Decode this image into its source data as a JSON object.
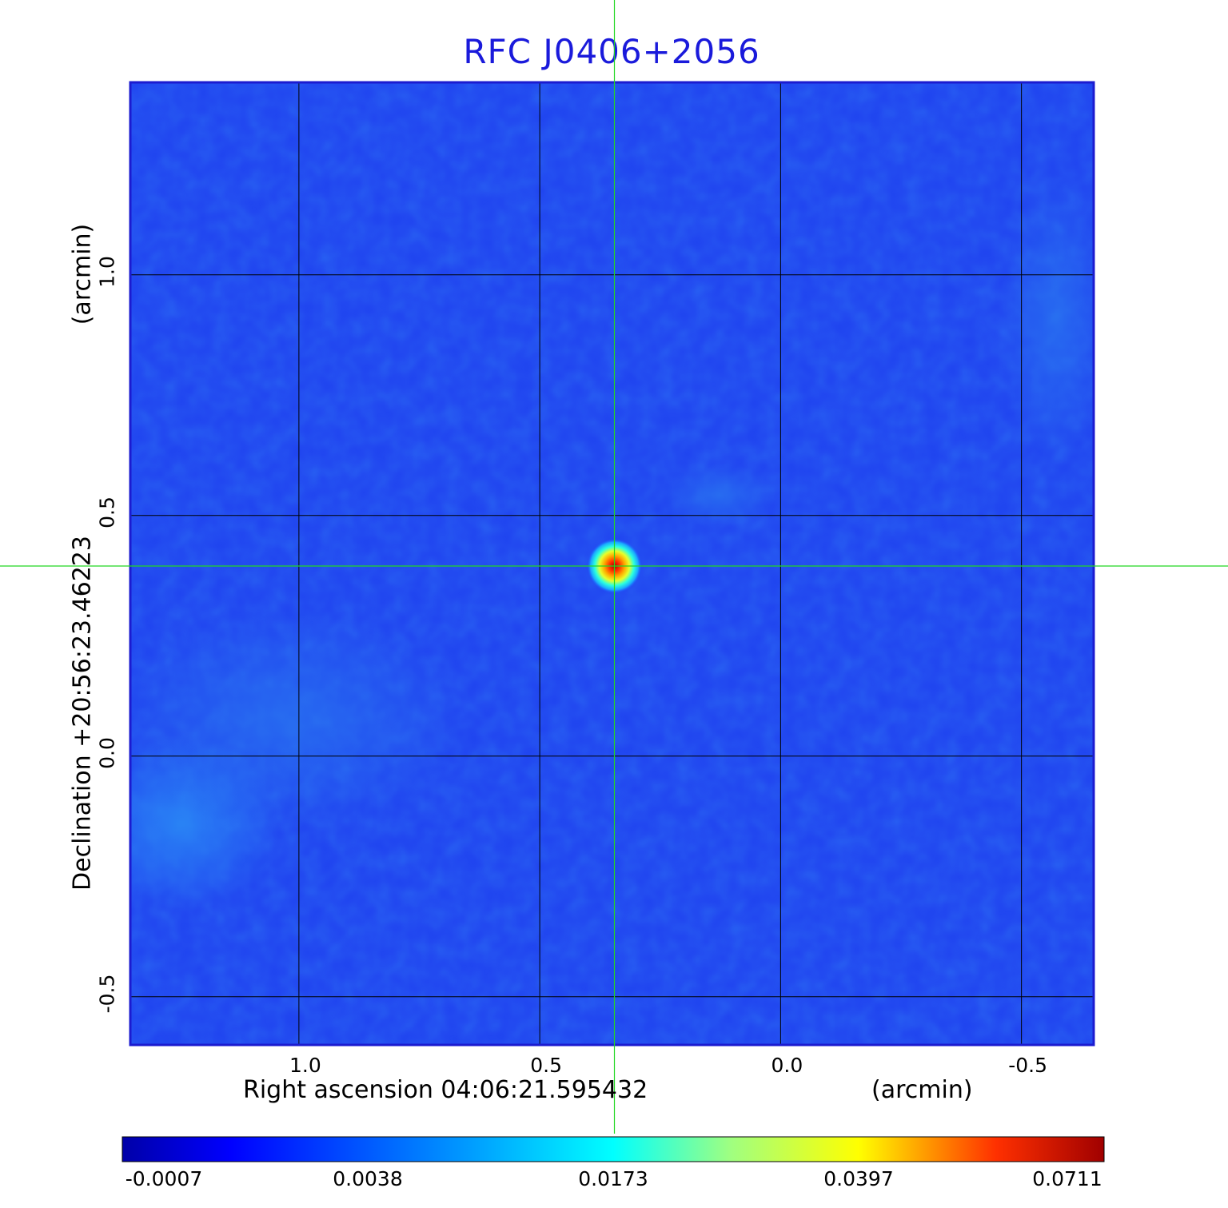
{
  "chart_data": {
    "type": "heatmap",
    "title": "RFC J0406+2056",
    "xlabel": "Right ascension  04:06:21.595432",
    "xunit": "(arcmin)",
    "ylabel": "Declination  +20:56:23.46223",
    "yunit": "(arcmin)",
    "x_ticks": [
      "1.0",
      "0.5",
      "0.0",
      "-0.5"
    ],
    "x_tick_values": [
      1.0,
      0.5,
      0.0,
      -0.5
    ],
    "y_ticks": [
      "1.0",
      "0.5",
      "0.0",
      "-0.5"
    ],
    "y_tick_values": [
      1.0,
      0.5,
      0.0,
      -0.5
    ],
    "xlim": [
      1.35,
      -0.65
    ],
    "ylim": [
      -0.6,
      1.4
    ],
    "x_reversed": true,
    "grid": true,
    "colormap": "jet",
    "colorbar_ticks": [
      "-0.0007",
      "0.0038",
      "0.0173",
      "0.0397",
      "0.0711"
    ],
    "color_range": [
      -0.0007,
      0.0711
    ],
    "source": {
      "x": 0.345,
      "y": 0.395,
      "peak": 0.0711
    },
    "background_level": "-0.0007 to 0.0038",
    "crosshair_color": "#22d822",
    "title_color": "#1a1adb"
  }
}
